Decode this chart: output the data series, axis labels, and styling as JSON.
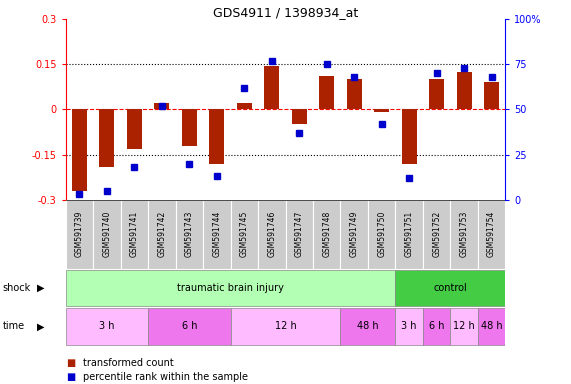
{
  "title": "GDS4911 / 1398934_at",
  "samples": [
    "GSM591739",
    "GSM591740",
    "GSM591741",
    "GSM591742",
    "GSM591743",
    "GSM591744",
    "GSM591745",
    "GSM591746",
    "GSM591747",
    "GSM591748",
    "GSM591749",
    "GSM591750",
    "GSM591751",
    "GSM591752",
    "GSM591753",
    "GSM591754"
  ],
  "red_values": [
    -0.27,
    -0.19,
    -0.13,
    0.02,
    -0.12,
    -0.18,
    0.02,
    0.145,
    -0.05,
    0.11,
    0.1,
    -0.01,
    -0.18,
    0.1,
    0.125,
    0.09
  ],
  "blue_values": [
    3,
    5,
    18,
    52,
    20,
    13,
    62,
    77,
    37,
    75,
    68,
    42,
    12,
    70,
    73,
    68
  ],
  "ylim_left": [
    -0.3,
    0.3
  ],
  "ylim_right": [
    0,
    100
  ],
  "yticks_left": [
    -0.3,
    -0.15,
    0.0,
    0.15,
    0.3
  ],
  "yticks_right": [
    0,
    25,
    50,
    75,
    100
  ],
  "ytick_labels_left": [
    "-0.3",
    "-0.15",
    "0",
    "0.15",
    "0.3"
  ],
  "ytick_labels_right": [
    "0",
    "25",
    "50",
    "75",
    "100%"
  ],
  "hlines": [
    -0.15,
    0.0,
    0.15
  ],
  "bar_color": "#aa2200",
  "dot_color": "#0000cc",
  "legend_red": "transformed count",
  "legend_blue": "percentile rank within the sample",
  "shock_row": [
    {
      "label": "traumatic brain injury",
      "start": 0,
      "end": 12,
      "color": "#b3ffb3"
    },
    {
      "label": "control",
      "start": 12,
      "end": 16,
      "color": "#44cc44"
    }
  ],
  "time_row": [
    {
      "label": "3 h",
      "start": 0,
      "end": 3,
      "color": "#ffbbff"
    },
    {
      "label": "6 h",
      "start": 3,
      "end": 6,
      "color": "#ee77ee"
    },
    {
      "label": "12 h",
      "start": 6,
      "end": 10,
      "color": "#ffbbff"
    },
    {
      "label": "48 h",
      "start": 10,
      "end": 12,
      "color": "#ee77ee"
    },
    {
      "label": "3 h",
      "start": 12,
      "end": 13,
      "color": "#ffbbff"
    },
    {
      "label": "6 h",
      "start": 13,
      "end": 14,
      "color": "#ee77ee"
    },
    {
      "label": "12 h",
      "start": 14,
      "end": 15,
      "color": "#ffbbff"
    },
    {
      "label": "48 h",
      "start": 15,
      "end": 16,
      "color": "#ee77ee"
    }
  ],
  "shock_label": "shock",
  "time_label": "time",
  "bg_color": "#ffffff",
  "sample_bg": "#cccccc",
  "border_color": "#888888"
}
